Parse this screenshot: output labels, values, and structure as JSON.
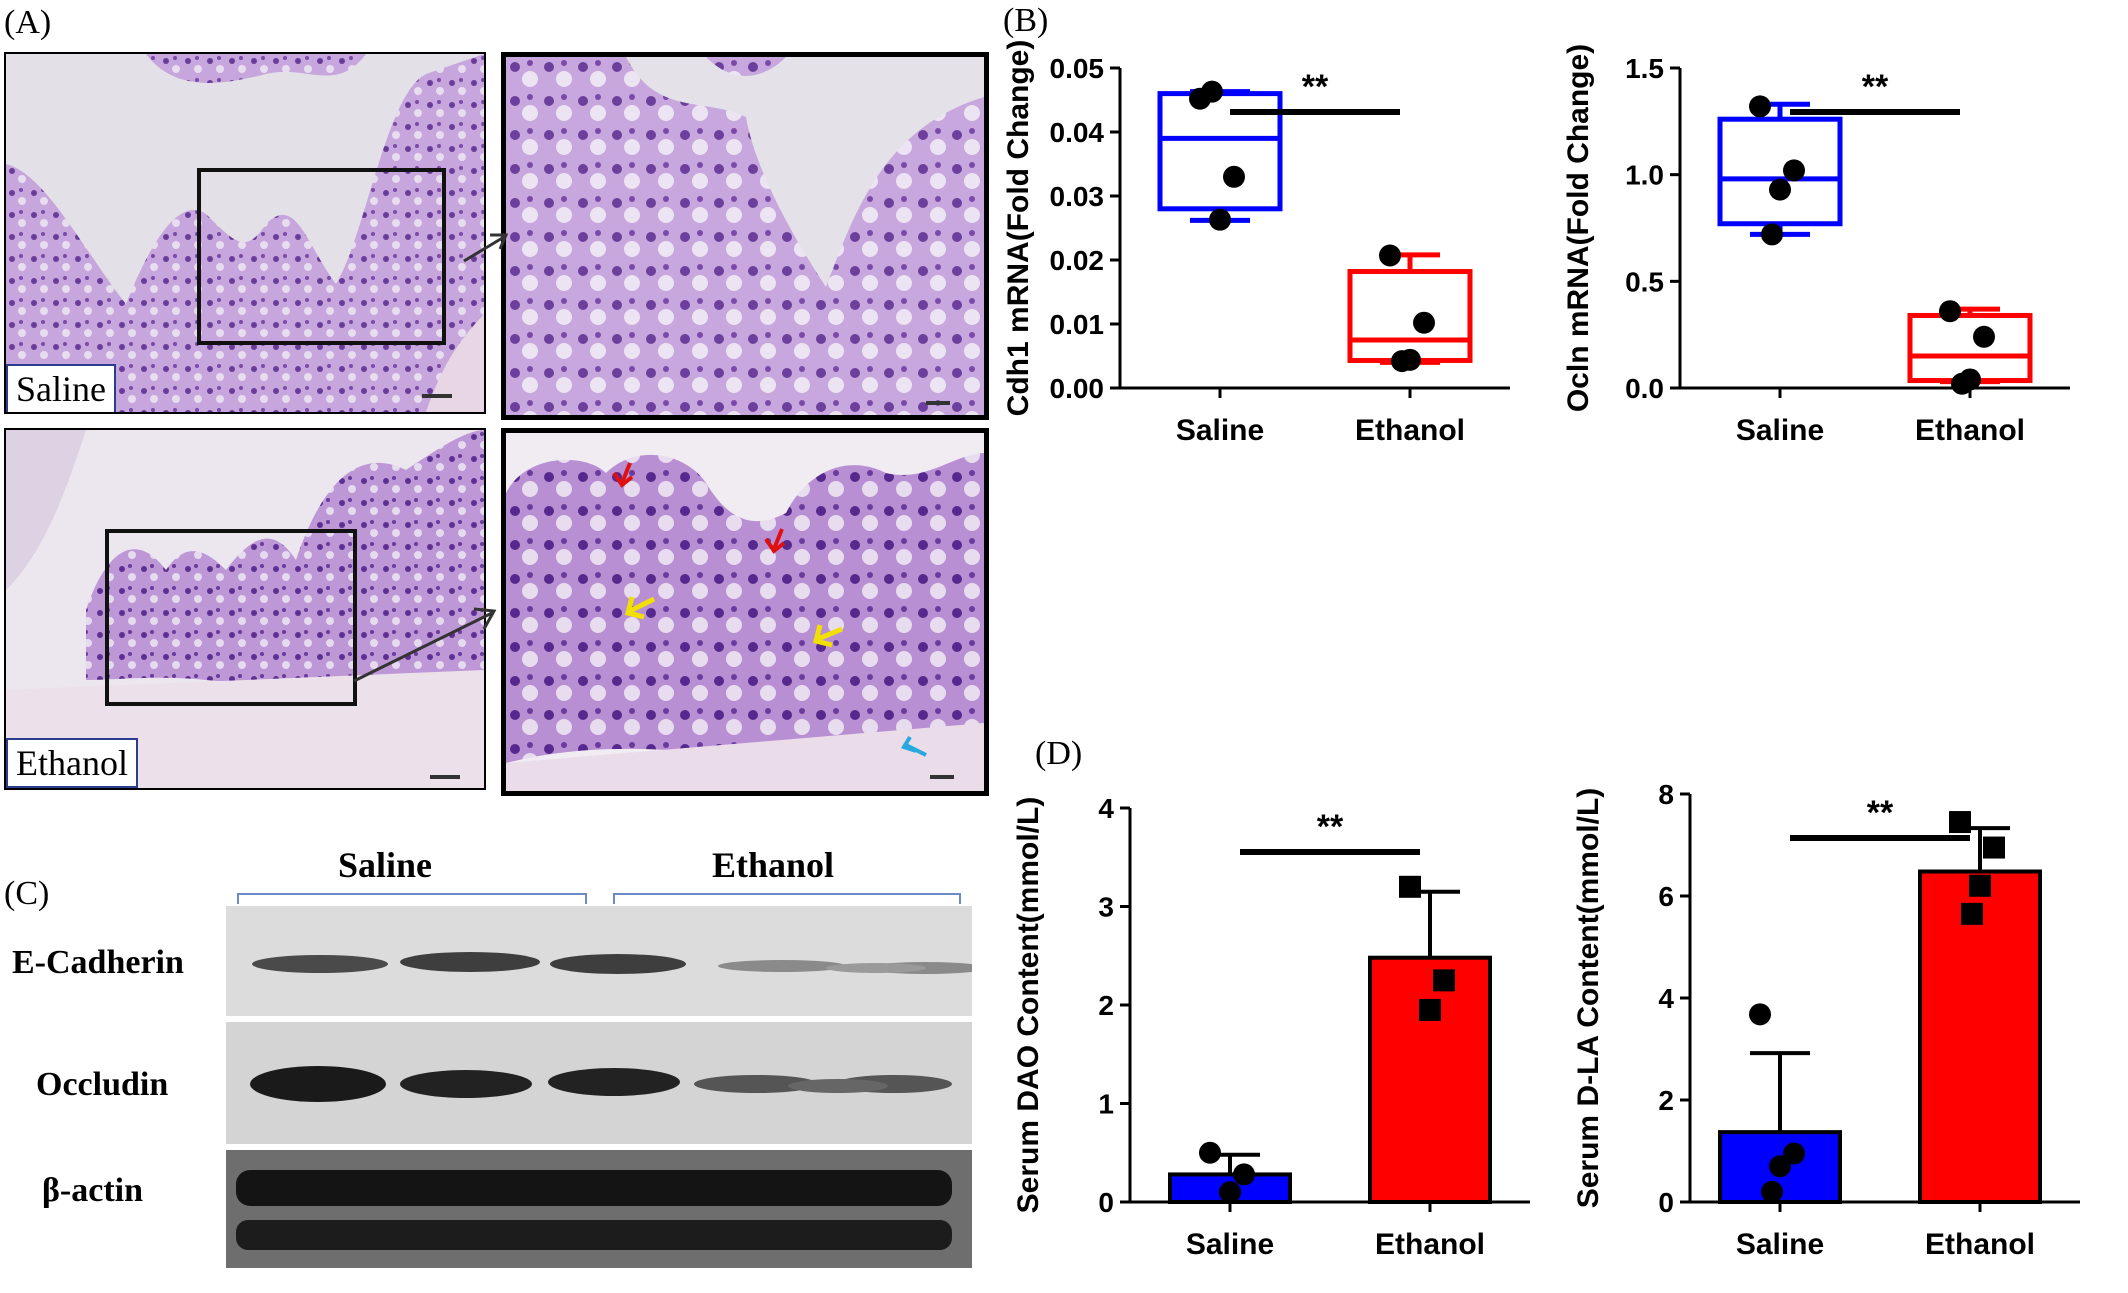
{
  "panel_labels": {
    "a": "(A)",
    "b": "(B)",
    "c": "(C)",
    "d": "(D)"
  },
  "histology": {
    "top_label": "Saline",
    "bottom_label": "Ethanol"
  },
  "western_blot": {
    "group_saline": "Saline",
    "group_ethanol": "Ethanol",
    "rows": [
      "E-Cadherin",
      "Occludin",
      "β-actin"
    ]
  },
  "colors": {
    "saline": "#0000ff",
    "ethanol": "#ff0000",
    "tissue": "#b58fd0"
  },
  "chart_data": [
    {
      "id": "cdh1",
      "type": "box",
      "ylabel": "Cdh1 mRNA(Fold Change)",
      "categories": [
        "Saline",
        "Ethanol"
      ],
      "ylim": [
        0,
        0.05
      ],
      "yticks": [
        "0.00",
        "0.01",
        "0.02",
        "0.03",
        "0.04",
        "0.05"
      ],
      "significance": "**",
      "boxes": [
        {
          "min": 0.0262,
          "q1": 0.028,
          "median": 0.039,
          "q3": 0.046,
          "max": 0.0463
        },
        {
          "min": 0.004,
          "q1": 0.0043,
          "median": 0.0075,
          "q3": 0.0182,
          "max": 0.0208
        }
      ],
      "points": [
        [
          0.0452,
          0.033,
          0.0263,
          0.0463
        ],
        [
          0.0207,
          0.0102,
          0.0044,
          0.0042
        ]
      ]
    },
    {
      "id": "ocln",
      "type": "box",
      "ylabel": "Ocln mRNA(Fold Change)",
      "categories": [
        "Saline",
        "Ethanol"
      ],
      "ylim": [
        0,
        1.5
      ],
      "yticks": [
        "0.0",
        "0.5",
        "1.0",
        "1.5"
      ],
      "significance": "**",
      "boxes": [
        {
          "min": 0.72,
          "q1": 0.77,
          "median": 0.98,
          "q3": 1.26,
          "max": 1.33
        },
        {
          "min": 0.03,
          "q1": 0.035,
          "median": 0.15,
          "q3": 0.34,
          "max": 0.37
        }
      ],
      "points": [
        [
          1.32,
          1.02,
          0.93,
          0.72
        ],
        [
          0.36,
          0.24,
          0.04,
          0.02
        ]
      ]
    },
    {
      "id": "dao",
      "type": "bar",
      "ylabel": "Serum DAO Content(mmol/L)",
      "categories": [
        "Saline",
        "Ethanol"
      ],
      "ylim": [
        0,
        4
      ],
      "yticks": [
        "0",
        "1",
        "2",
        "3",
        "4"
      ],
      "significance": "**",
      "values": [
        0.28,
        2.48
      ],
      "errors": [
        0.2,
        0.67
      ],
      "points": [
        [
          0.5,
          0.28,
          0.1
        ],
        [
          3.2,
          2.25,
          1.95
        ]
      ],
      "markers": [
        "circle",
        "square"
      ]
    },
    {
      "id": "dla",
      "type": "bar",
      "ylabel": "Serum D-LA Content(mmol/L)",
      "categories": [
        "Saline",
        "Ethanol"
      ],
      "ylim": [
        0,
        8
      ],
      "yticks": [
        "0",
        "2",
        "4",
        "6",
        "8"
      ],
      "significance": "**",
      "values": [
        1.37,
        6.48
      ],
      "errors": [
        1.55,
        0.85
      ],
      "points": [
        [
          3.68,
          0.95,
          0.7,
          0.2
        ],
        [
          7.45,
          6.95,
          6.2,
          5.65
        ]
      ],
      "markers": [
        "circle",
        "square"
      ]
    }
  ]
}
